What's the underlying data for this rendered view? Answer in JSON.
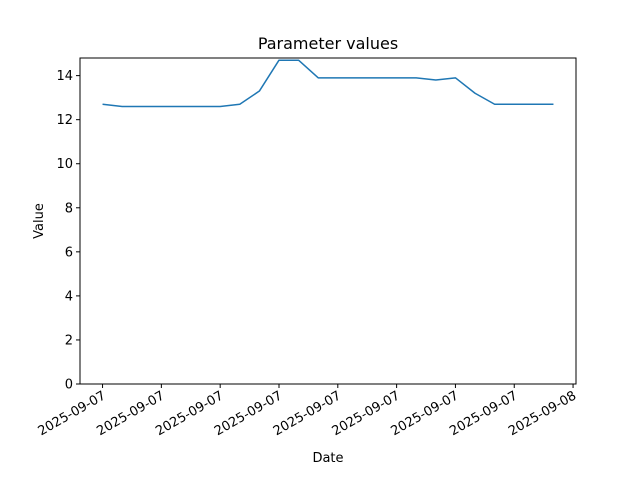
{
  "chart_data": {
    "type": "line",
    "title": "Parameter values",
    "xlabel": "Date",
    "ylabel": "Value",
    "x": [
      0,
      1,
      2,
      3,
      4,
      5,
      6,
      7,
      8,
      9,
      10,
      11,
      12,
      13,
      14,
      15,
      16,
      17,
      18,
      19,
      20,
      21,
      22,
      23
    ],
    "values": [
      12.7,
      12.6,
      12.6,
      12.6,
      12.6,
      12.6,
      12.6,
      12.7,
      13.3,
      14.7,
      14.7,
      13.9,
      13.9,
      13.9,
      13.9,
      13.9,
      13.9,
      13.8,
      13.9,
      13.2,
      12.7,
      12.7,
      12.7,
      12.7
    ],
    "color": "#1f77b4",
    "xlim": [
      -1.15,
      24.15
    ],
    "xticks": [
      {
        "value": 0,
        "label": "2025-09-07"
      },
      {
        "value": 3,
        "label": "2025-09-07"
      },
      {
        "value": 6,
        "label": "2025-09-07"
      },
      {
        "value": 9,
        "label": "2025-09-07"
      },
      {
        "value": 12,
        "label": "2025-09-07"
      },
      {
        "value": 15,
        "label": "2025-09-07"
      },
      {
        "value": 18,
        "label": "2025-09-07"
      },
      {
        "value": 21,
        "label": "2025-09-07"
      },
      {
        "value": 24,
        "label": "2025-09-08"
      }
    ],
    "ylim": [
      0,
      14.8
    ],
    "yticks": [
      0,
      2,
      4,
      6,
      8,
      10,
      12,
      14
    ],
    "grid": false
  }
}
